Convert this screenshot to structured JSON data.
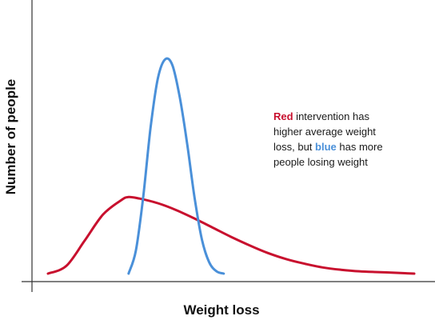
{
  "chart_data": {
    "type": "line",
    "title": "",
    "xlabel": "Weight loss",
    "ylabel": "Number of people",
    "grid": false,
    "ticks": "none",
    "series": [
      {
        "color": "#c8102e",
        "x": [
          0.0,
          0.05,
          0.1,
          0.15,
          0.2,
          0.22,
          0.25,
          0.3,
          0.35,
          0.4,
          0.45,
          0.5,
          0.55,
          0.6,
          0.65,
          0.7,
          0.75,
          0.8,
          0.85,
          0.9,
          0.95,
          1.0
        ],
        "y": [
          0.0,
          0.1,
          0.43,
          0.77,
          0.96,
          1.0,
          0.98,
          0.92,
          0.83,
          0.72,
          0.6,
          0.48,
          0.37,
          0.27,
          0.19,
          0.13,
          0.08,
          0.05,
          0.03,
          0.02,
          0.01,
          0.0
        ]
      },
      {
        "color": "#4a90d9",
        "x": [
          0.22,
          0.24,
          0.26,
          0.28,
          0.3,
          0.32,
          0.34,
          0.36,
          0.38,
          0.4,
          0.42,
          0.44,
          0.46,
          0.48
        ],
        "y": [
          0.0,
          0.3,
          1.0,
          1.9,
          2.55,
          2.8,
          2.72,
          2.3,
          1.7,
          1.0,
          0.45,
          0.15,
          0.03,
          0.0
        ]
      }
    ],
    "xlim": [
      0,
      1
    ],
    "ylim": [
      0,
      3
    ],
    "annotation": {
      "red_word": "Red",
      "line1_rest": " intervention has",
      "line2": "higher average weight",
      "line3_start": "loss, but ",
      "blue_word": "blue",
      "line3_end": " has more",
      "line4": "people losing weight"
    }
  }
}
